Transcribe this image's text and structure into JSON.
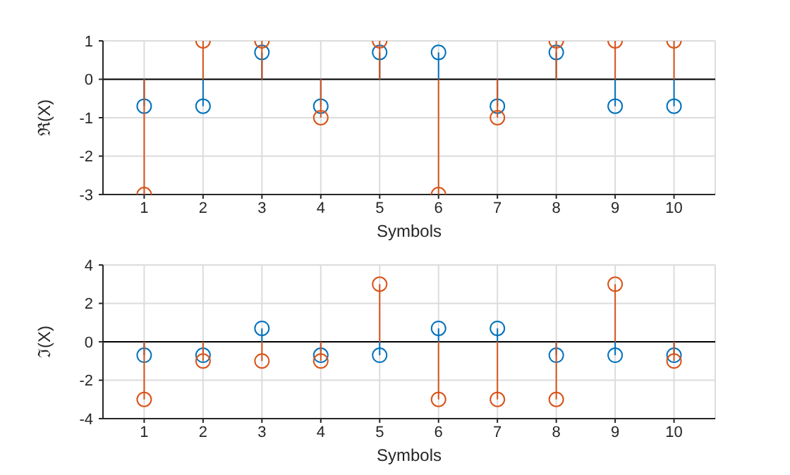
{
  "chart_data": [
    {
      "type": "lollipop",
      "xlabel": "Symbols",
      "ylabel": "ℜ(X)",
      "x": [
        1,
        2,
        3,
        4,
        5,
        6,
        7,
        8,
        9,
        10
      ],
      "xlim": [
        0.3,
        10.7
      ],
      "xticks": [
        1,
        2,
        3,
        4,
        5,
        6,
        7,
        8,
        9,
        10
      ],
      "ylim": [
        -3,
        1
      ],
      "yticks": [
        -3,
        -2,
        -1,
        0,
        1
      ],
      "grid": true,
      "marker": "circle",
      "ref_lines": [
        {
          "axis": "y",
          "value": 0,
          "color": "#000000"
        }
      ],
      "series": [
        {
          "color": "#0072bd",
          "values": [
            -0.7,
            -0.7,
            0.7,
            -0.7,
            0.7,
            0.7,
            -0.7,
            0.7,
            -0.7,
            -0.7
          ]
        },
        {
          "color": "#d95319",
          "values": [
            -3,
            1,
            1,
            -1,
            1,
            -3,
            -1,
            1,
            1,
            1
          ]
        }
      ]
    },
    {
      "type": "lollipop",
      "xlabel": "Symbols",
      "ylabel": "ℑ(X)",
      "x": [
        1,
        2,
        3,
        4,
        5,
        6,
        7,
        8,
        9,
        10
      ],
      "xlim": [
        0.3,
        10.7
      ],
      "xticks": [
        1,
        2,
        3,
        4,
        5,
        6,
        7,
        8,
        9,
        10
      ],
      "ylim": [
        -4,
        4
      ],
      "yticks": [
        -4,
        -2,
        0,
        2,
        4
      ],
      "grid": true,
      "marker": "circle",
      "ref_lines": [
        {
          "axis": "y",
          "value": 0,
          "color": "#000000"
        }
      ],
      "series": [
        {
          "color": "#0072bd",
          "values": [
            -0.7,
            -0.7,
            0.7,
            -0.7,
            -0.7,
            0.7,
            0.7,
            -0.7,
            -0.7,
            -0.7
          ]
        },
        {
          "color": "#d95319",
          "values": [
            -3,
            -1,
            -1,
            -1,
            3,
            -3,
            -3,
            -3,
            3,
            -1
          ]
        }
      ]
    }
  ]
}
